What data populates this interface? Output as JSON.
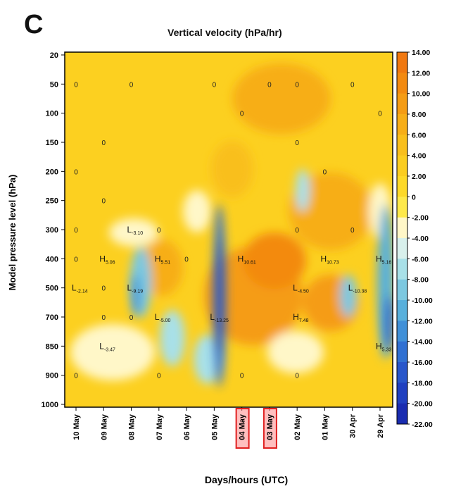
{
  "panel_letter": "C",
  "chart_data": {
    "type": "heatmap",
    "title": "Vertical velocity (hPa/hr)",
    "xlabel": "Days/hours (UTC)",
    "ylabel": "Model pressure level (hPa)",
    "x_ticks": [
      "10 May",
      "09 May",
      "08 May",
      "07 May",
      "06 May",
      "05 May",
      "04 May",
      "03 May",
      "02 May",
      "01 May",
      "30 Apr",
      "29 Apr"
    ],
    "x_highlighted": [
      "04 May",
      "03 May"
    ],
    "y_ticks": [
      "20",
      "50",
      "100",
      "150",
      "200",
      "250",
      "300",
      "400",
      "500",
      "700",
      "850",
      "900",
      "1000"
    ],
    "y_reversed": true,
    "colorbar": {
      "ticks": [
        "14.00",
        "12.00",
        "10.00",
        "8.00",
        "6.00",
        "4.00",
        "2.00",
        "0",
        "-2.00",
        "-4.00",
        "-6.00",
        "-8.00",
        "-10.00",
        "-12.00",
        "-14.00",
        "-16.00",
        "-18.00",
        "-20.00",
        "-22.00"
      ],
      "colors": [
        "#f07810",
        "#f38a10",
        "#f59c14",
        "#f7ae18",
        "#f9bf1c",
        "#fbcd20",
        "#fdd928",
        "#fee94a",
        "#fff7c8",
        "#d8f0ec",
        "#a8e0e8",
        "#7cc8e0",
        "#58b0dc",
        "#4090d8",
        "#3070d2",
        "#2856ca",
        "#2040c0",
        "#1a2cb0"
      ]
    },
    "contour_labels": [
      {
        "x": "10 May",
        "y": "50",
        "text": "0"
      },
      {
        "x": "08 May",
        "y": "50",
        "text": "0"
      },
      {
        "x": "05 May",
        "y": "50",
        "text": "0"
      },
      {
        "x": "03 May",
        "y": "50",
        "text": "0"
      },
      {
        "x": "02 May",
        "y": "50",
        "text": "0"
      },
      {
        "x": "30 Apr",
        "y": "50",
        "text": "0"
      },
      {
        "x": "04 May",
        "y": "100",
        "text": "0"
      },
      {
        "x": "29 Apr",
        "y": "100",
        "text": "0"
      },
      {
        "x": "09 May",
        "y": "150",
        "text": "0"
      },
      {
        "x": "02 May",
        "y": "150",
        "text": "0"
      },
      {
        "x": "10 May",
        "y": "200",
        "text": "0"
      },
      {
        "x": "01 May",
        "y": "200",
        "text": "0"
      },
      {
        "x": "09 May",
        "y": "250",
        "text": "0"
      },
      {
        "x": "10 May",
        "y": "300",
        "text": "0"
      },
      {
        "x": "07 May",
        "y": "300",
        "text": "0"
      },
      {
        "x": "02 May",
        "y": "300",
        "text": "0"
      },
      {
        "x": "30 Apr",
        "y": "300",
        "text": "0"
      },
      {
        "x": "10 May",
        "y": "400",
        "text": "0"
      },
      {
        "x": "06 May",
        "y": "400",
        "text": "0"
      },
      {
        "x": "09 May",
        "y": "500",
        "text": "0"
      },
      {
        "x": "09 May",
        "y": "700",
        "text": "0"
      },
      {
        "x": "08 May",
        "y": "700",
        "text": "0"
      },
      {
        "x": "10 May",
        "y": "900",
        "text": "0"
      },
      {
        "x": "07 May",
        "y": "900",
        "text": "0"
      },
      {
        "x": "04 May",
        "y": "900",
        "text": "0"
      },
      {
        "x": "02 May",
        "y": "900",
        "text": "0"
      }
    ],
    "pressure_centers": [
      {
        "x": "08 May",
        "y": "300",
        "letter": "L",
        "value": "-3.10"
      },
      {
        "x": "09 May",
        "y": "400",
        "letter": "H",
        "value": "5.06"
      },
      {
        "x": "07 May",
        "y": "400",
        "letter": "H",
        "value": "5.51"
      },
      {
        "x": "04 May",
        "y": "400",
        "letter": "H",
        "value": "10.61"
      },
      {
        "x": "01 May",
        "y": "400",
        "letter": "H",
        "value": "10.73"
      },
      {
        "x": "29 Apr",
        "y": "400",
        "letter": "H",
        "value": "5.16"
      },
      {
        "x": "10 May",
        "y": "500",
        "letter": "L",
        "value": "-2.14"
      },
      {
        "x": "08 May",
        "y": "500",
        "letter": "L",
        "value": "-9.19"
      },
      {
        "x": "02 May",
        "y": "500",
        "letter": "L",
        "value": "-4.50"
      },
      {
        "x": "30 Apr",
        "y": "500",
        "letter": "L",
        "value": "-10.38"
      },
      {
        "x": "07 May",
        "y": "700",
        "letter": "L",
        "value": "-5.00"
      },
      {
        "x": "05 May",
        "y": "700",
        "letter": "L",
        "value": "-13.25"
      },
      {
        "x": "02 May",
        "y": "700",
        "letter": "H",
        "value": "7.48"
      },
      {
        "x": "09 May",
        "y": "850",
        "letter": "L",
        "value": "-3.47"
      },
      {
        "x": "29 Apr",
        "y": "850",
        "letter": "H",
        "value": "5.33"
      }
    ]
  }
}
